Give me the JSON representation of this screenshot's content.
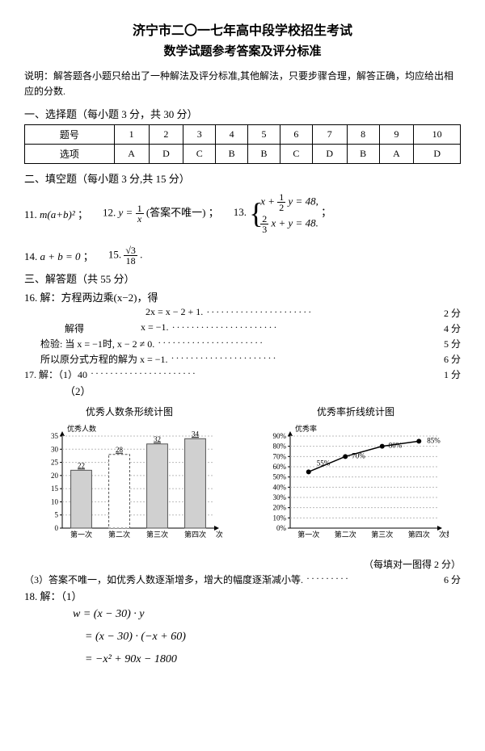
{
  "header": {
    "title": "济宁市二〇一七年高中段学校招生考试",
    "subtitle": "数学试题参考答案及评分标准"
  },
  "instructions": "说明：解答题各小题只给出了一种解法及评分标准,其他解法，只要步骤合理，解答正确，均应给出相应的分数.",
  "section1": {
    "head": "一、选择题（每小题 3 分，共 30 分）",
    "table": {
      "row1_label": "题号",
      "row2_label": "选项",
      "nums": [
        "1",
        "2",
        "3",
        "4",
        "5",
        "6",
        "7",
        "8",
        "9",
        "10"
      ],
      "answers": [
        "A",
        "D",
        "C",
        "B",
        "B",
        "C",
        "D",
        "B",
        "A",
        "D"
      ]
    }
  },
  "section2": {
    "head": "二、填空题（每小题 3 分,共 15 分）",
    "q11_num": "11.",
    "q11_math": "m(a+b)²",
    "q11_suffix": "；",
    "q12_num": "12.",
    "q12_prefix": "y = ",
    "q12_frac_num": "1",
    "q12_frac_den": "x",
    "q12_note": " (答案不唯一) ；",
    "q13_num": "13.",
    "q13_eq1_a": "x + ",
    "q13_eq1_fn": "1",
    "q13_eq1_fd": "2",
    "q13_eq1_b": " y = 48,",
    "q13_eq2_fn": "2",
    "q13_eq2_fd": "3",
    "q13_eq2_b": " x + y = 48.",
    "q13_suffix": "；",
    "q14_num": "14.",
    "q14_math": "a + b = 0",
    "q14_suffix": "；",
    "q15_num": "15.",
    "q15_frac_num": "√3",
    "q15_frac_den": "18",
    "q15_suffix": "."
  },
  "section3": {
    "head": "三、解答题（共 55 分）",
    "q16_label": "16. 解：方程两边乘(x−2)，得",
    "q16_line1": "2x = x − 2 + 1.",
    "q16_score1": "2 分",
    "q16_solve": "解得",
    "q16_line2": "x = −1.",
    "q16_score2": "4 分",
    "q16_line3": "检验: 当 x = −1时,  x − 2 ≠ 0.",
    "q16_score3": "5 分",
    "q16_line4": "所以原分式方程的解为 x = −1.",
    "q16_score4": "6 分",
    "q17_label": "17. 解：（1）40",
    "q17_score1": "1 分",
    "q17_sub2": "（2）",
    "chart1_title": "优秀人数条形统计图",
    "chart2_title": "优秀率折线统计图",
    "chart_note": "（每填对一图得 2 分）",
    "q17_3": "（3）答案不唯一，如优秀人数逐渐增多，增大的幅度逐渐减小等.",
    "q17_score3": "6 分",
    "q18_label": "18. 解：（1）",
    "q18_eq1": "w = (x − 30) · y",
    "q18_eq2": "= (x − 30) · (−x + 60)",
    "q18_eq3": "= −x² + 90x − 1800"
  },
  "bar_chart": {
    "y_label": "优秀人数",
    "x_label": "次数",
    "categories": [
      "第一次",
      "第二次",
      "第三次",
      "第四次"
    ],
    "values": [
      22,
      28,
      32,
      34
    ],
    "labels": [
      "22",
      "28",
      "32",
      "34"
    ],
    "y_ticks": [
      0,
      5,
      10,
      15,
      20,
      25,
      30,
      35
    ],
    "bar_fill": "#d0d0d0",
    "bar_stroke": "#555555",
    "axis_color": "#000000",
    "grid_color": "#bbbbbb",
    "highlight_bar_index": 1,
    "highlight_fill": "#ffffff",
    "dashed_bars": [
      1
    ]
  },
  "line_chart": {
    "y_label": "优秀率",
    "x_label": "次数",
    "categories": [
      "第一次",
      "第二次",
      "第三次",
      "第四次"
    ],
    "values": [
      55,
      70,
      80,
      85
    ],
    "labels": [
      "55%",
      "70%",
      "80%",
      "85%"
    ],
    "y_ticks": [
      0,
      10,
      20,
      30,
      40,
      50,
      60,
      70,
      80,
      90
    ],
    "line_color": "#000000",
    "marker_fill": "#000000",
    "axis_color": "#000000",
    "grid_color": "#bbbbbb"
  }
}
